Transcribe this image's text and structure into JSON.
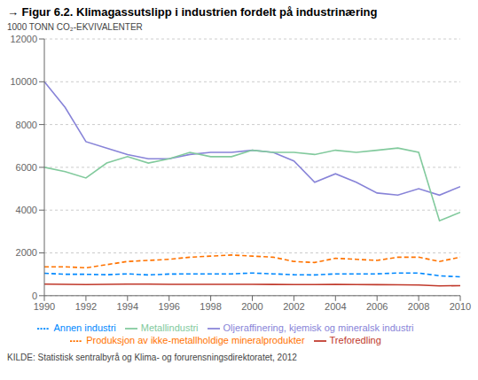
{
  "chart_data": {
    "type": "line",
    "title": "→ Figur 6.2. Klimagassutslipp i industrien fordelt på industrinæring",
    "ylabel": "1000 TONN CO₂-EKVIVALENTER",
    "source": "KILDE: Statistisk sentralbyrå og Klima- og forurensningsdirektoratet, 2012",
    "x": [
      1990,
      1991,
      1992,
      1993,
      1994,
      1995,
      1996,
      1997,
      1998,
      1999,
      2000,
      2001,
      2002,
      2003,
      2004,
      2005,
      2006,
      2007,
      2008,
      2009,
      2010
    ],
    "series": [
      {
        "name": "Oljeraffinering, kjemisk og mineralsk industri",
        "color": "#8884d8",
        "line_style": "solid",
        "values": [
          10000,
          8800,
          7200,
          6900,
          6600,
          6400,
          6400,
          6600,
          6700,
          6700,
          6800,
          6700,
          6300,
          5300,
          5700,
          5300,
          4800,
          4700,
          5000,
          4700,
          5100
        ]
      },
      {
        "name": "Metallindustri",
        "color": "#82ca9d",
        "line_style": "solid",
        "values": [
          6000,
          5800,
          5500,
          6200,
          6500,
          6200,
          6400,
          6700,
          6500,
          6500,
          6800,
          6700,
          6700,
          6600,
          6800,
          6700,
          6800,
          6900,
          6700,
          3500,
          3900
        ]
      },
      {
        "name": "Produksjon av ikke-metallholdige mineralprodukter",
        "color": "#ff7300",
        "line_style": "dashed",
        "values": [
          1350,
          1350,
          1300,
          1450,
          1600,
          1650,
          1700,
          1800,
          1850,
          1900,
          1850,
          1800,
          1600,
          1550,
          1750,
          1700,
          1650,
          1800,
          1800,
          1600,
          1800
        ]
      },
      {
        "name": "Annen industri",
        "color": "#0088fe",
        "line_style": "dashed",
        "values": [
          1050,
          1000,
          1000,
          980,
          1020,
          970,
          1010,
          1020,
          1020,
          1020,
          1060,
          1020,
          980,
          970,
          1020,
          1020,
          1020,
          1060,
          1060,
          930,
          880
        ]
      },
      {
        "name": "Treforedling",
        "color": "#c0392b",
        "line_style": "solid",
        "values": [
          540,
          530,
          520,
          530,
          540,
          540,
          530,
          530,
          530,
          530,
          530,
          525,
          520,
          520,
          525,
          520,
          515,
          510,
          500,
          460,
          470
        ]
      }
    ],
    "xlim": [
      1990,
      2010
    ],
    "xticks": [
      1990,
      1992,
      1994,
      1996,
      1998,
      2000,
      2002,
      2004,
      2006,
      2008,
      2010
    ],
    "ylim": [
      0,
      12000
    ],
    "yticks": [
      0,
      2000,
      4000,
      6000,
      8000,
      10000,
      12000
    ],
    "grid": true
  }
}
